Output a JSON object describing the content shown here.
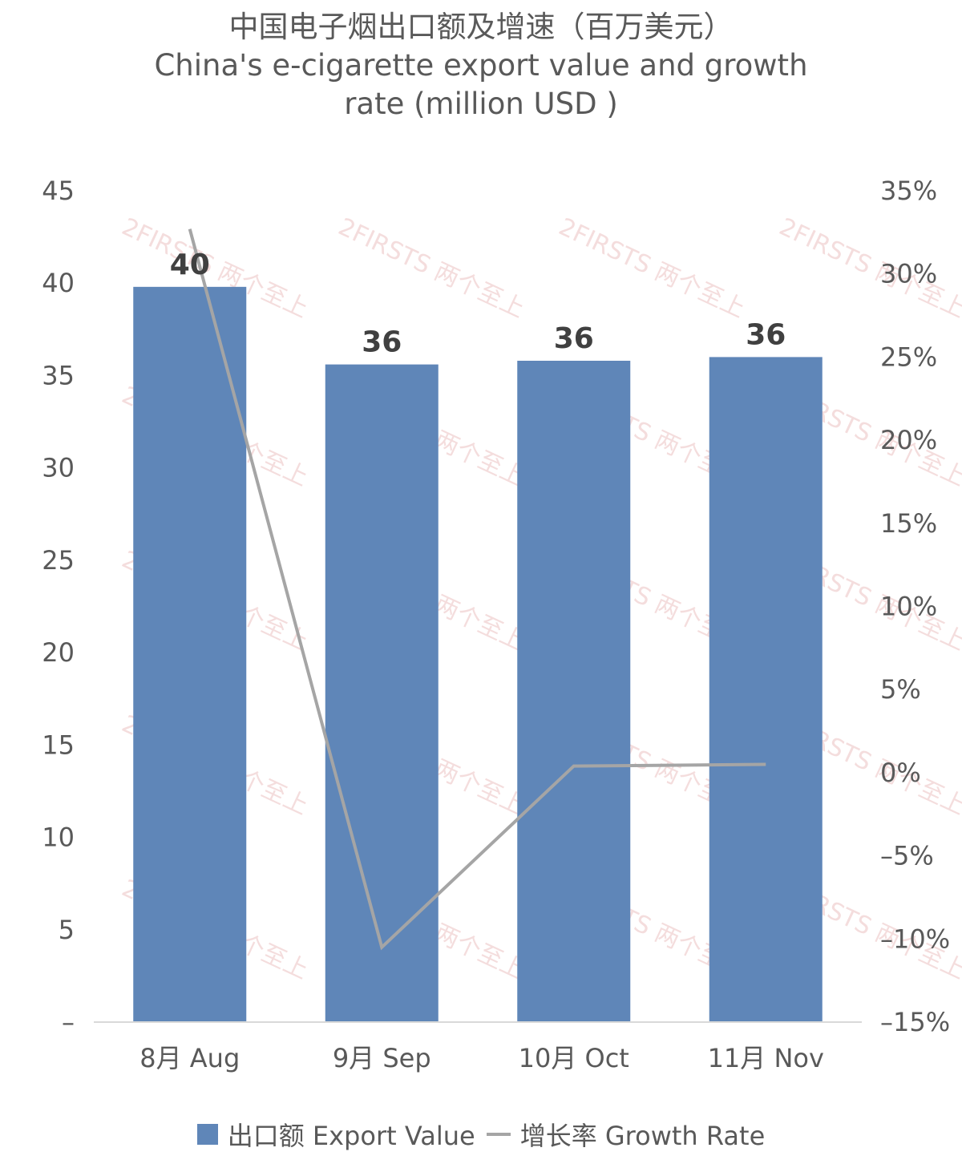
{
  "chart_data": {
    "type": "bar",
    "title_cn": "中国电子烟出口额及增速（百万美元）",
    "title_en_line1": "China's e-cigarette export value and growth",
    "title_en_line2": "rate (million USD )",
    "categories": [
      "8月 Aug",
      "9月 Sep",
      "10月 Oct",
      "11月 Nov"
    ],
    "series": [
      {
        "name": "出口额 Export Value",
        "type": "bar",
        "axis": "left",
        "values": [
          39.8,
          35.6,
          35.8,
          36.0
        ],
        "labels": [
          "40",
          "36",
          "36",
          "36"
        ],
        "color": "#5f86b8"
      },
      {
        "name": "增长率 Growth Rate",
        "type": "line",
        "axis": "right",
        "values": [
          0.327,
          -0.105,
          0.004,
          0.005
        ],
        "color": "#a5a5a5"
      }
    ],
    "left_axis": {
      "ylim": [
        0,
        45
      ],
      "ticks": [
        0,
        5,
        10,
        15,
        20,
        25,
        30,
        35,
        40,
        45
      ],
      "tick_labels": [
        "–",
        "5",
        "10",
        "15",
        "20",
        "25",
        "30",
        "35",
        "40",
        "45"
      ]
    },
    "right_axis": {
      "ylim": [
        -0.15,
        0.35
      ],
      "ticks": [
        -0.15,
        -0.1,
        -0.05,
        0,
        0.05,
        0.1,
        0.15,
        0.2,
        0.25,
        0.3,
        0.35
      ],
      "tick_labels": [
        "–15%",
        "–10%",
        "–5%",
        "0%",
        "5%",
        "10%",
        "15%",
        "20%",
        "25%",
        "30%",
        "35%"
      ]
    },
    "legend_position": "bottom",
    "grid": false,
    "watermark": "2FIRSTS 两个至上"
  }
}
